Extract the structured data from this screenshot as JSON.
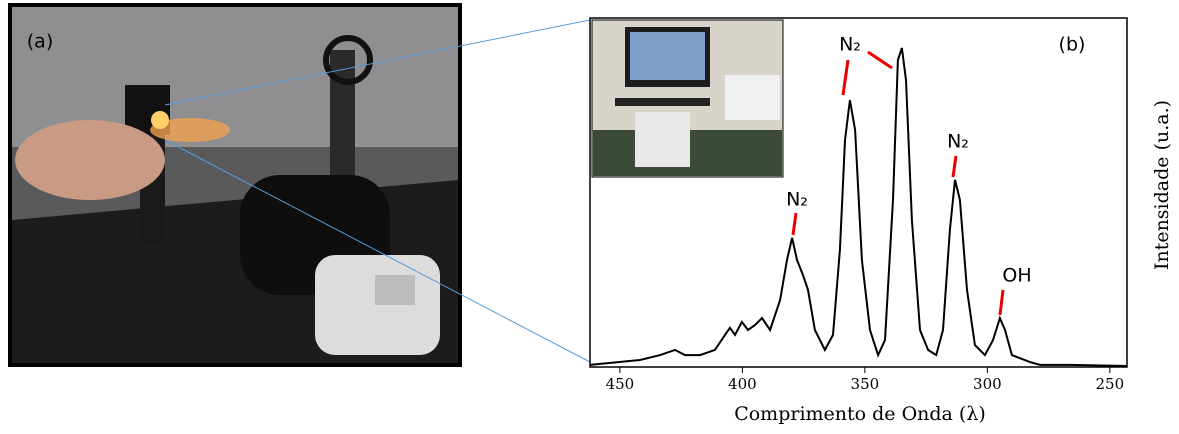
{
  "chart_data": {
    "type": "line",
    "x_label": "Comprimento de Onda (λ)",
    "y_label": "Intensidade (u.a.)",
    "xlim": [
      462.2,
      243
    ],
    "xticks": [
      450,
      400,
      350,
      300,
      250
    ],
    "ylim": [
      0,
      1
    ],
    "color": "#000000",
    "annotations": [
      "(a)",
      "(b)",
      "N₂",
      "N₂",
      "N₂",
      "OH"
    ],
    "x": [
      462.2,
      441.8,
      433.6,
      427.5,
      423.4,
      417.3,
      411.2,
      407.1,
      405.1,
      403.0,
      400.2,
      397.7,
      394.9,
      392.0,
      388.7,
      384.6,
      381.8,
      379.7,
      377.7,
      375.3,
      373.2,
      370.4,
      366.3,
      363.0,
      360.2,
      358.1,
      356.1,
      354.0,
      351.2,
      347.9,
      344.6,
      341.8,
      338.5,
      336.5,
      334.9,
      333.2,
      330.8,
      327.5,
      324.2,
      320.9,
      318.1,
      315.3,
      313.2,
      311.2,
      308.3,
      305.1,
      301.0,
      297.7,
      294.9,
      292.8,
      290.0,
      282.6,
      278.5,
      266.3,
      243.0
    ],
    "values": [
      0.006,
      0.02,
      0.034,
      0.049,
      0.034,
      0.034,
      0.049,
      0.092,
      0.112,
      0.092,
      0.129,
      0.106,
      0.12,
      0.14,
      0.106,
      0.192,
      0.307,
      0.37,
      0.307,
      0.264,
      0.221,
      0.106,
      0.049,
      0.092,
      0.335,
      0.65,
      0.765,
      0.679,
      0.307,
      0.106,
      0.034,
      0.077,
      0.479,
      0.88,
      0.914,
      0.822,
      0.421,
      0.106,
      0.049,
      0.034,
      0.106,
      0.393,
      0.536,
      0.479,
      0.221,
      0.063,
      0.034,
      0.077,
      0.14,
      0.106,
      0.034,
      0.014,
      0.006,
      0.006,
      0.003
    ]
  }
}
